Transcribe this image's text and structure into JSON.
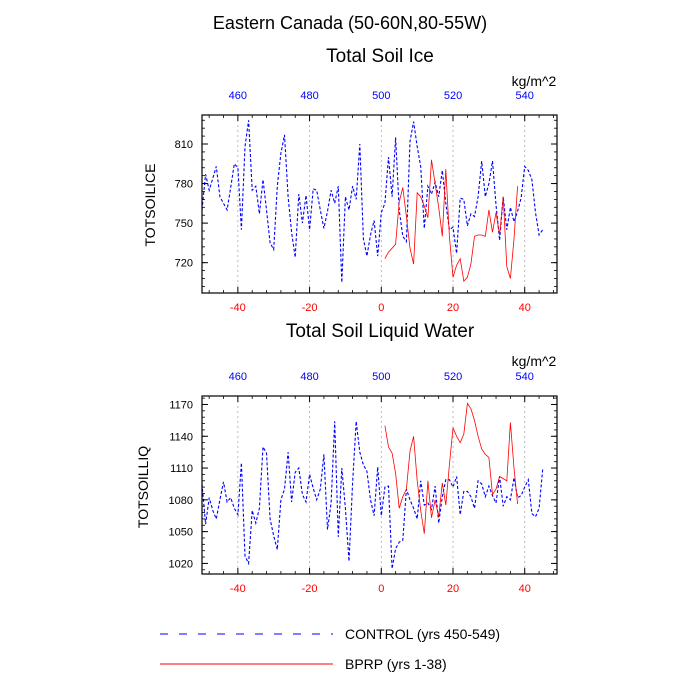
{
  "page": {
    "title": "Eastern Canada (50-60N,80-55W)",
    "legend": [
      {
        "label": "CONTROL (yrs 450-549)",
        "color": "#0000ff",
        "style": "dashed"
      },
      {
        "label": "BPRP (yrs 1-38)",
        "color": "#ff0000",
        "style": "solid"
      }
    ]
  },
  "chart_data": [
    {
      "type": "line",
      "title": "Total Soil Ice",
      "ylabel": "TOTSOILICE",
      "units": "kg/m^2",
      "xlim": [
        -50,
        49
      ],
      "ylim": [
        697,
        832
      ],
      "yticks": [
        720,
        750,
        780,
        810
      ],
      "xticks_bottom": [
        -40,
        -20,
        0,
        20,
        40
      ],
      "xticks_top": [
        460,
        480,
        500,
        520,
        540
      ],
      "grid_x": [
        -40,
        -20,
        0,
        20,
        40
      ],
      "series": [
        {
          "name": "CONTROL (yrs 450-549)",
          "color": "#0000ff",
          "style": "dashed",
          "x_start": -50,
          "values": [
            760,
            787,
            775,
            784,
            793,
            770,
            765,
            760,
            777,
            795,
            792,
            745,
            808,
            828,
            775,
            778,
            757,
            783,
            760,
            735,
            730,
            778,
            803,
            817,
            770,
            743,
            724,
            772,
            750,
            771,
            745,
            776,
            775,
            760,
            746,
            759,
            775,
            765,
            778,
            705,
            770,
            760,
            778,
            768,
            810,
            738,
            725,
            741,
            752,
            725,
            758,
            765,
            800,
            770,
            815,
            760,
            740,
            736,
            812,
            827,
            808,
            793,
            746,
            778,
            772,
            781,
            770,
            790,
            765,
            745,
            747,
            727,
            769,
            768,
            748,
            757,
            755,
            770,
            797,
            770,
            780,
            797,
            764,
            737,
            770,
            745,
            762,
            751,
            759,
            769,
            793,
            790,
            783,
            758,
            741,
            745
          ]
        },
        {
          "name": "BPRP (yrs 1-38)",
          "color": "#ff0000",
          "style": "solid",
          "x_start": 1,
          "values": [
            723,
            728,
            731,
            734,
            766,
            777,
            755,
            731,
            719,
            773,
            770,
            763,
            754,
            798,
            780,
            762,
            740,
            791,
            740,
            709,
            718,
            723,
            706,
            709,
            719,
            740,
            741,
            741,
            740,
            760,
            743,
            758,
            741,
            770,
            717,
            708,
            738,
            778
          ]
        }
      ]
    },
    {
      "type": "line",
      "title": "Total Soil Liquid Water",
      "ylabel": "TOTSOILLIQ",
      "units": "kg/m^2",
      "xlim": [
        -50,
        49
      ],
      "ylim": [
        1010,
        1178
      ],
      "yticks": [
        1020,
        1050,
        1080,
        1110,
        1140,
        1170
      ],
      "xticks_bottom": [
        -40,
        -20,
        0,
        20,
        40
      ],
      "xticks_top": [
        460,
        480,
        500,
        520,
        540
      ],
      "grid_x": [
        -40,
        -20,
        0,
        20,
        40
      ],
      "series": [
        {
          "name": "CONTROL (yrs 450-549)",
          "color": "#0000ff",
          "style": "dashed",
          "x_start": -50,
          "values": [
            1095,
            1057,
            1082,
            1070,
            1062,
            1080,
            1097,
            1078,
            1082,
            1072,
            1066,
            1115,
            1027,
            1020,
            1070,
            1058,
            1072,
            1130,
            1124,
            1062,
            1046,
            1033,
            1080,
            1090,
            1125,
            1078,
            1106,
            1110,
            1085,
            1078,
            1104,
            1091,
            1080,
            1090,
            1123,
            1052,
            1077,
            1154,
            1045,
            1110,
            1072,
            1022,
            1096,
            1154,
            1125,
            1113,
            1107,
            1080,
            1065,
            1111,
            1065,
            1092,
            1093,
            1015,
            1034,
            1040,
            1042,
            1090,
            1080,
            1072,
            1062,
            1098,
            1075,
            1077,
            1071,
            1093,
            1058,
            1083,
            1099,
            1099,
            1092,
            1102,
            1066,
            1088,
            1088,
            1083,
            1072,
            1098,
            1095,
            1083,
            1093,
            1084,
            1077,
            1102,
            1074,
            1083,
            1080,
            1101,
            1082,
            1084,
            1092,
            1099,
            1067,
            1064,
            1072,
            1109
          ]
        },
        {
          "name": "BPRP (yrs 1-38)",
          "color": "#ff0000",
          "style": "solid",
          "x_start": 1,
          "values": [
            1150,
            1130,
            1124,
            1105,
            1072,
            1083,
            1090,
            1126,
            1140,
            1098,
            1070,
            1048,
            1098,
            1063,
            1080,
            1064,
            1096,
            1075,
            1113,
            1148,
            1140,
            1134,
            1142,
            1171,
            1166,
            1155,
            1140,
            1128,
            1123,
            1120,
            1085,
            1090,
            1102,
            1100,
            1098,
            1153,
            1110,
            1076
          ]
        }
      ]
    }
  ]
}
